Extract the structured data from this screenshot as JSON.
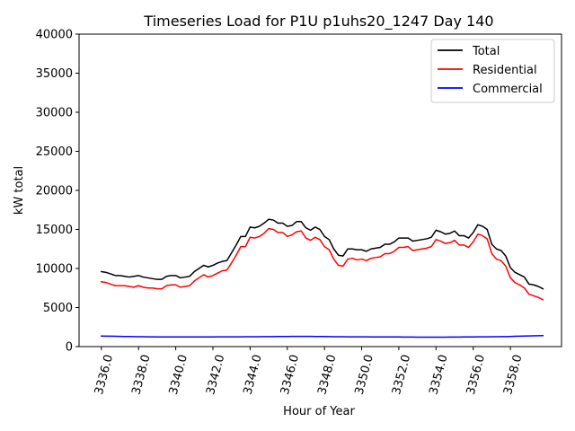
{
  "chart_data": {
    "type": "line",
    "title": "Timeseries Load for P1U p1uhs20_1247  Day 140",
    "xlabel": "Hour of Year",
    "ylabel": "kW total",
    "xlim": [
      3334.8,
      3360.75
    ],
    "ylim": [
      0,
      40000
    ],
    "xticks": [
      3336,
      3338,
      3340,
      3342,
      3344,
      3346,
      3348,
      3350,
      3352,
      3354,
      3356,
      3358
    ],
    "xtick_labels": [
      "3336.0",
      "3338.0",
      "3340.0",
      "3342.0",
      "3344.0",
      "3346.0",
      "3348.0",
      "3350.0",
      "3352.0",
      "3354.0",
      "3356.0",
      "3358.0"
    ],
    "yticks": [
      0,
      5000,
      10000,
      15000,
      20000,
      25000,
      30000,
      35000,
      40000
    ],
    "ytick_labels": [
      "0",
      "5000",
      "10000",
      "15000",
      "20000",
      "25000",
      "30000",
      "35000",
      "40000"
    ],
    "grid": false,
    "legend_position": "top-right",
    "x": [
      3336.0,
      3336.25,
      3336.5,
      3336.75,
      3337.0,
      3337.25,
      3337.5,
      3337.75,
      3338.0,
      3338.25,
      3338.5,
      3338.75,
      3339.0,
      3339.25,
      3339.5,
      3339.75,
      3340.0,
      3340.25,
      3340.5,
      3340.75,
      3341.0,
      3341.25,
      3341.5,
      3341.75,
      3342.0,
      3342.25,
      3342.5,
      3342.75,
      3343.0,
      3343.25,
      3343.5,
      3343.75,
      3344.0,
      3344.25,
      3344.5,
      3344.75,
      3345.0,
      3345.25,
      3345.5,
      3345.75,
      3346.0,
      3346.25,
      3346.5,
      3346.75,
      3347.0,
      3347.25,
      3347.5,
      3347.75,
      3348.0,
      3348.25,
      3348.5,
      3348.75,
      3349.0,
      3349.25,
      3349.5,
      3349.75,
      3350.0,
      3350.25,
      3350.5,
      3350.75,
      3351.0,
      3351.25,
      3351.5,
      3351.75,
      3352.0,
      3352.25,
      3352.5,
      3352.75,
      3353.0,
      3353.25,
      3353.5,
      3353.75,
      3354.0,
      3354.25,
      3354.5,
      3354.75,
      3355.0,
      3355.25,
      3355.5,
      3355.75,
      3356.0,
      3356.25,
      3356.5,
      3356.75,
      3357.0,
      3357.25,
      3357.5,
      3357.75,
      3358.0,
      3358.25,
      3358.5,
      3358.75,
      3359.0,
      3359.25,
      3359.5,
      3359.75
    ],
    "series": [
      {
        "name": "Total",
        "color": "#000000",
        "values": [
          9600,
          9500,
          9300,
          9100,
          9100,
          9000,
          8900,
          9000,
          9100,
          8900,
          8800,
          8700,
          8600,
          8600,
          9000,
          9100,
          9100,
          8800,
          8900,
          9000,
          9600,
          10000,
          10400,
          10200,
          10400,
          10700,
          10900,
          11000,
          12000,
          13000,
          14100,
          14100,
          15300,
          15200,
          15400,
          15800,
          16300,
          16200,
          15800,
          15800,
          15400,
          15500,
          16000,
          16000,
          15200,
          14900,
          15300,
          15000,
          14100,
          13700,
          12500,
          11700,
          11600,
          12500,
          12500,
          12400,
          12400,
          12200,
          12500,
          12600,
          12700,
          13100,
          13100,
          13400,
          13900,
          13900,
          13900,
          13500,
          13600,
          13700,
          13800,
          14000,
          14900,
          14700,
          14400,
          14500,
          14800,
          14200,
          14200,
          13900,
          14600,
          15600,
          15400,
          15000,
          13100,
          12500,
          12300,
          11600,
          10100,
          9500,
          9200,
          8900,
          8000,
          7900,
          7700,
          7400
        ]
      },
      {
        "name": "Residential",
        "color": "#ff0000",
        "values": [
          8300,
          8200,
          8000,
          7800,
          7800,
          7800,
          7700,
          7600,
          7800,
          7600,
          7500,
          7500,
          7400,
          7400,
          7800,
          7900,
          7900,
          7600,
          7700,
          7800,
          8400,
          8800,
          9200,
          8900,
          9100,
          9400,
          9700,
          9800,
          10700,
          11700,
          12800,
          12800,
          14000,
          13900,
          14100,
          14500,
          15100,
          15000,
          14600,
          14600,
          14100,
          14300,
          14700,
          14800,
          13900,
          13600,
          14000,
          13700,
          12800,
          12400,
          11200,
          10400,
          10300,
          11200,
          11300,
          11100,
          11200,
          11000,
          11300,
          11400,
          11500,
          11900,
          11900,
          12200,
          12700,
          12700,
          12800,
          12300,
          12400,
          12500,
          12600,
          12800,
          13700,
          13500,
          13200,
          13300,
          13600,
          13000,
          13000,
          12700,
          13400,
          14400,
          14200,
          13800,
          11900,
          11200,
          11000,
          10300,
          8800,
          8200,
          7900,
          7500,
          6700,
          6500,
          6300,
          6000
        ]
      },
      {
        "name": "Commercial",
        "color": "#0000ff",
        "values": [
          1350,
          1340,
          1330,
          1320,
          1310,
          1300,
          1290,
          1280,
          1270,
          1260,
          1250,
          1245,
          1240,
          1240,
          1240,
          1240,
          1235,
          1230,
          1230,
          1230,
          1230,
          1230,
          1235,
          1235,
          1240,
          1245,
          1245,
          1250,
          1250,
          1255,
          1255,
          1260,
          1260,
          1265,
          1270,
          1275,
          1280,
          1285,
          1290,
          1295,
          1300,
          1305,
          1310,
          1310,
          1310,
          1305,
          1300,
          1295,
          1290,
          1280,
          1270,
          1265,
          1260,
          1255,
          1250,
          1250,
          1245,
          1245,
          1240,
          1240,
          1240,
          1240,
          1235,
          1235,
          1230,
          1225,
          1220,
          1215,
          1210,
          1205,
          1200,
          1200,
          1200,
          1205,
          1210,
          1215,
          1220,
          1225,
          1230,
          1235,
          1240,
          1245,
          1250,
          1255,
          1260,
          1265,
          1275,
          1285,
          1300,
          1315,
          1330,
          1345,
          1360,
          1375,
          1390,
          1400
        ]
      }
    ]
  }
}
